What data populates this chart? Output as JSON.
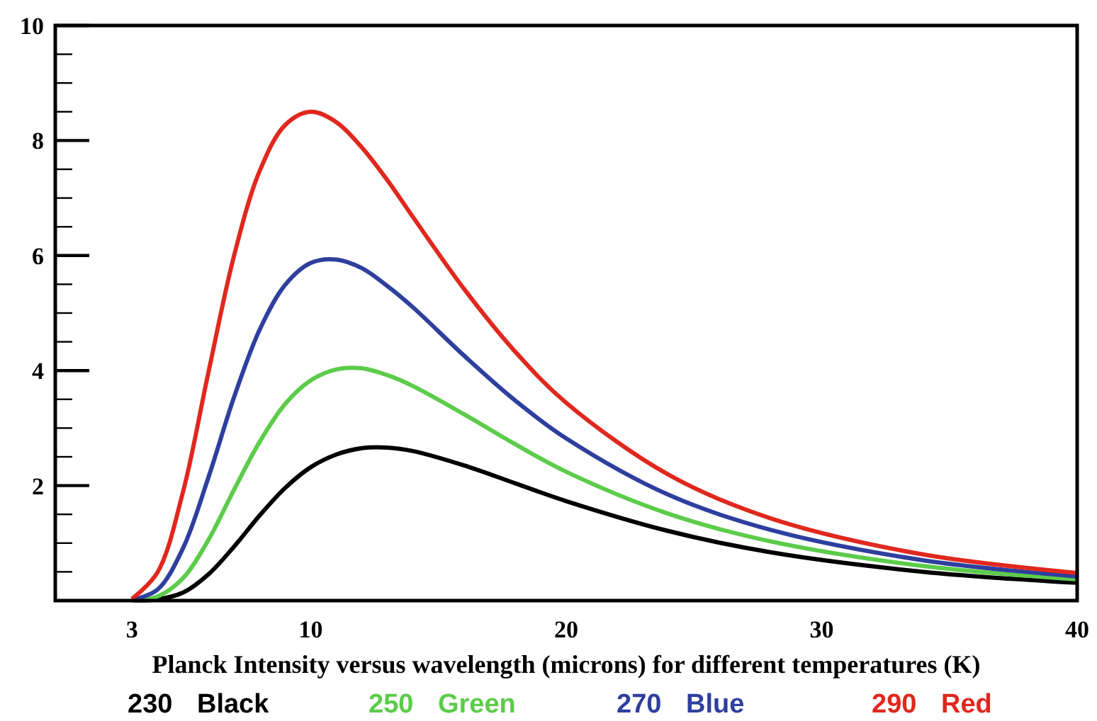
{
  "chart_data": {
    "type": "line",
    "xlabel": "Planck Intensity versus wavelength (microns) for different temperatures (K)",
    "x": [
      3,
      4,
      5,
      6,
      7,
      8,
      9,
      10,
      11,
      12,
      13,
      14,
      16,
      18,
      20,
      24,
      28,
      34,
      40
    ],
    "xlim": [
      0,
      40
    ],
    "xticks": [
      3,
      10,
      20,
      30,
      40
    ],
    "ylim": [
      0,
      10
    ],
    "yticks": [
      2,
      4,
      6,
      8,
      10
    ],
    "legend": "bottom",
    "series": [
      {
        "name": "230 Black",
        "color": "#000000",
        "values": [
          0,
          0.02,
          0.14,
          0.46,
          0.94,
          1.48,
          1.96,
          2.32,
          2.54,
          2.65,
          2.66,
          2.6,
          2.35,
          2.04,
          1.73,
          1.21,
          0.84,
          0.5,
          0.31
        ]
      },
      {
        "name": "250 Green",
        "color": "#5ccc4a",
        "values": [
          0,
          0.07,
          0.39,
          1.06,
          1.93,
          2.76,
          3.42,
          3.83,
          4.02,
          4.04,
          3.92,
          3.73,
          3.24,
          2.72,
          2.24,
          1.51,
          1.03,
          0.6,
          0.37
        ]
      },
      {
        "name": "270 Blue",
        "color": "#2e3f9e",
        "values": [
          0.01,
          0.19,
          0.91,
          2.15,
          3.54,
          4.71,
          5.49,
          5.87,
          5.93,
          5.78,
          5.47,
          5.1,
          4.26,
          3.48,
          2.82,
          1.84,
          1.23,
          0.7,
          0.42
        ]
      },
      {
        "name": "290 Red",
        "color": "#e0281e",
        "values": [
          0.03,
          0.49,
          1.89,
          3.98,
          6,
          7.47,
          8.27,
          8.5,
          8.32,
          7.88,
          7.31,
          6.67,
          5.42,
          4.33,
          3.44,
          2.19,
          1.43,
          0.8,
          0.48
        ]
      }
    ]
  }
}
